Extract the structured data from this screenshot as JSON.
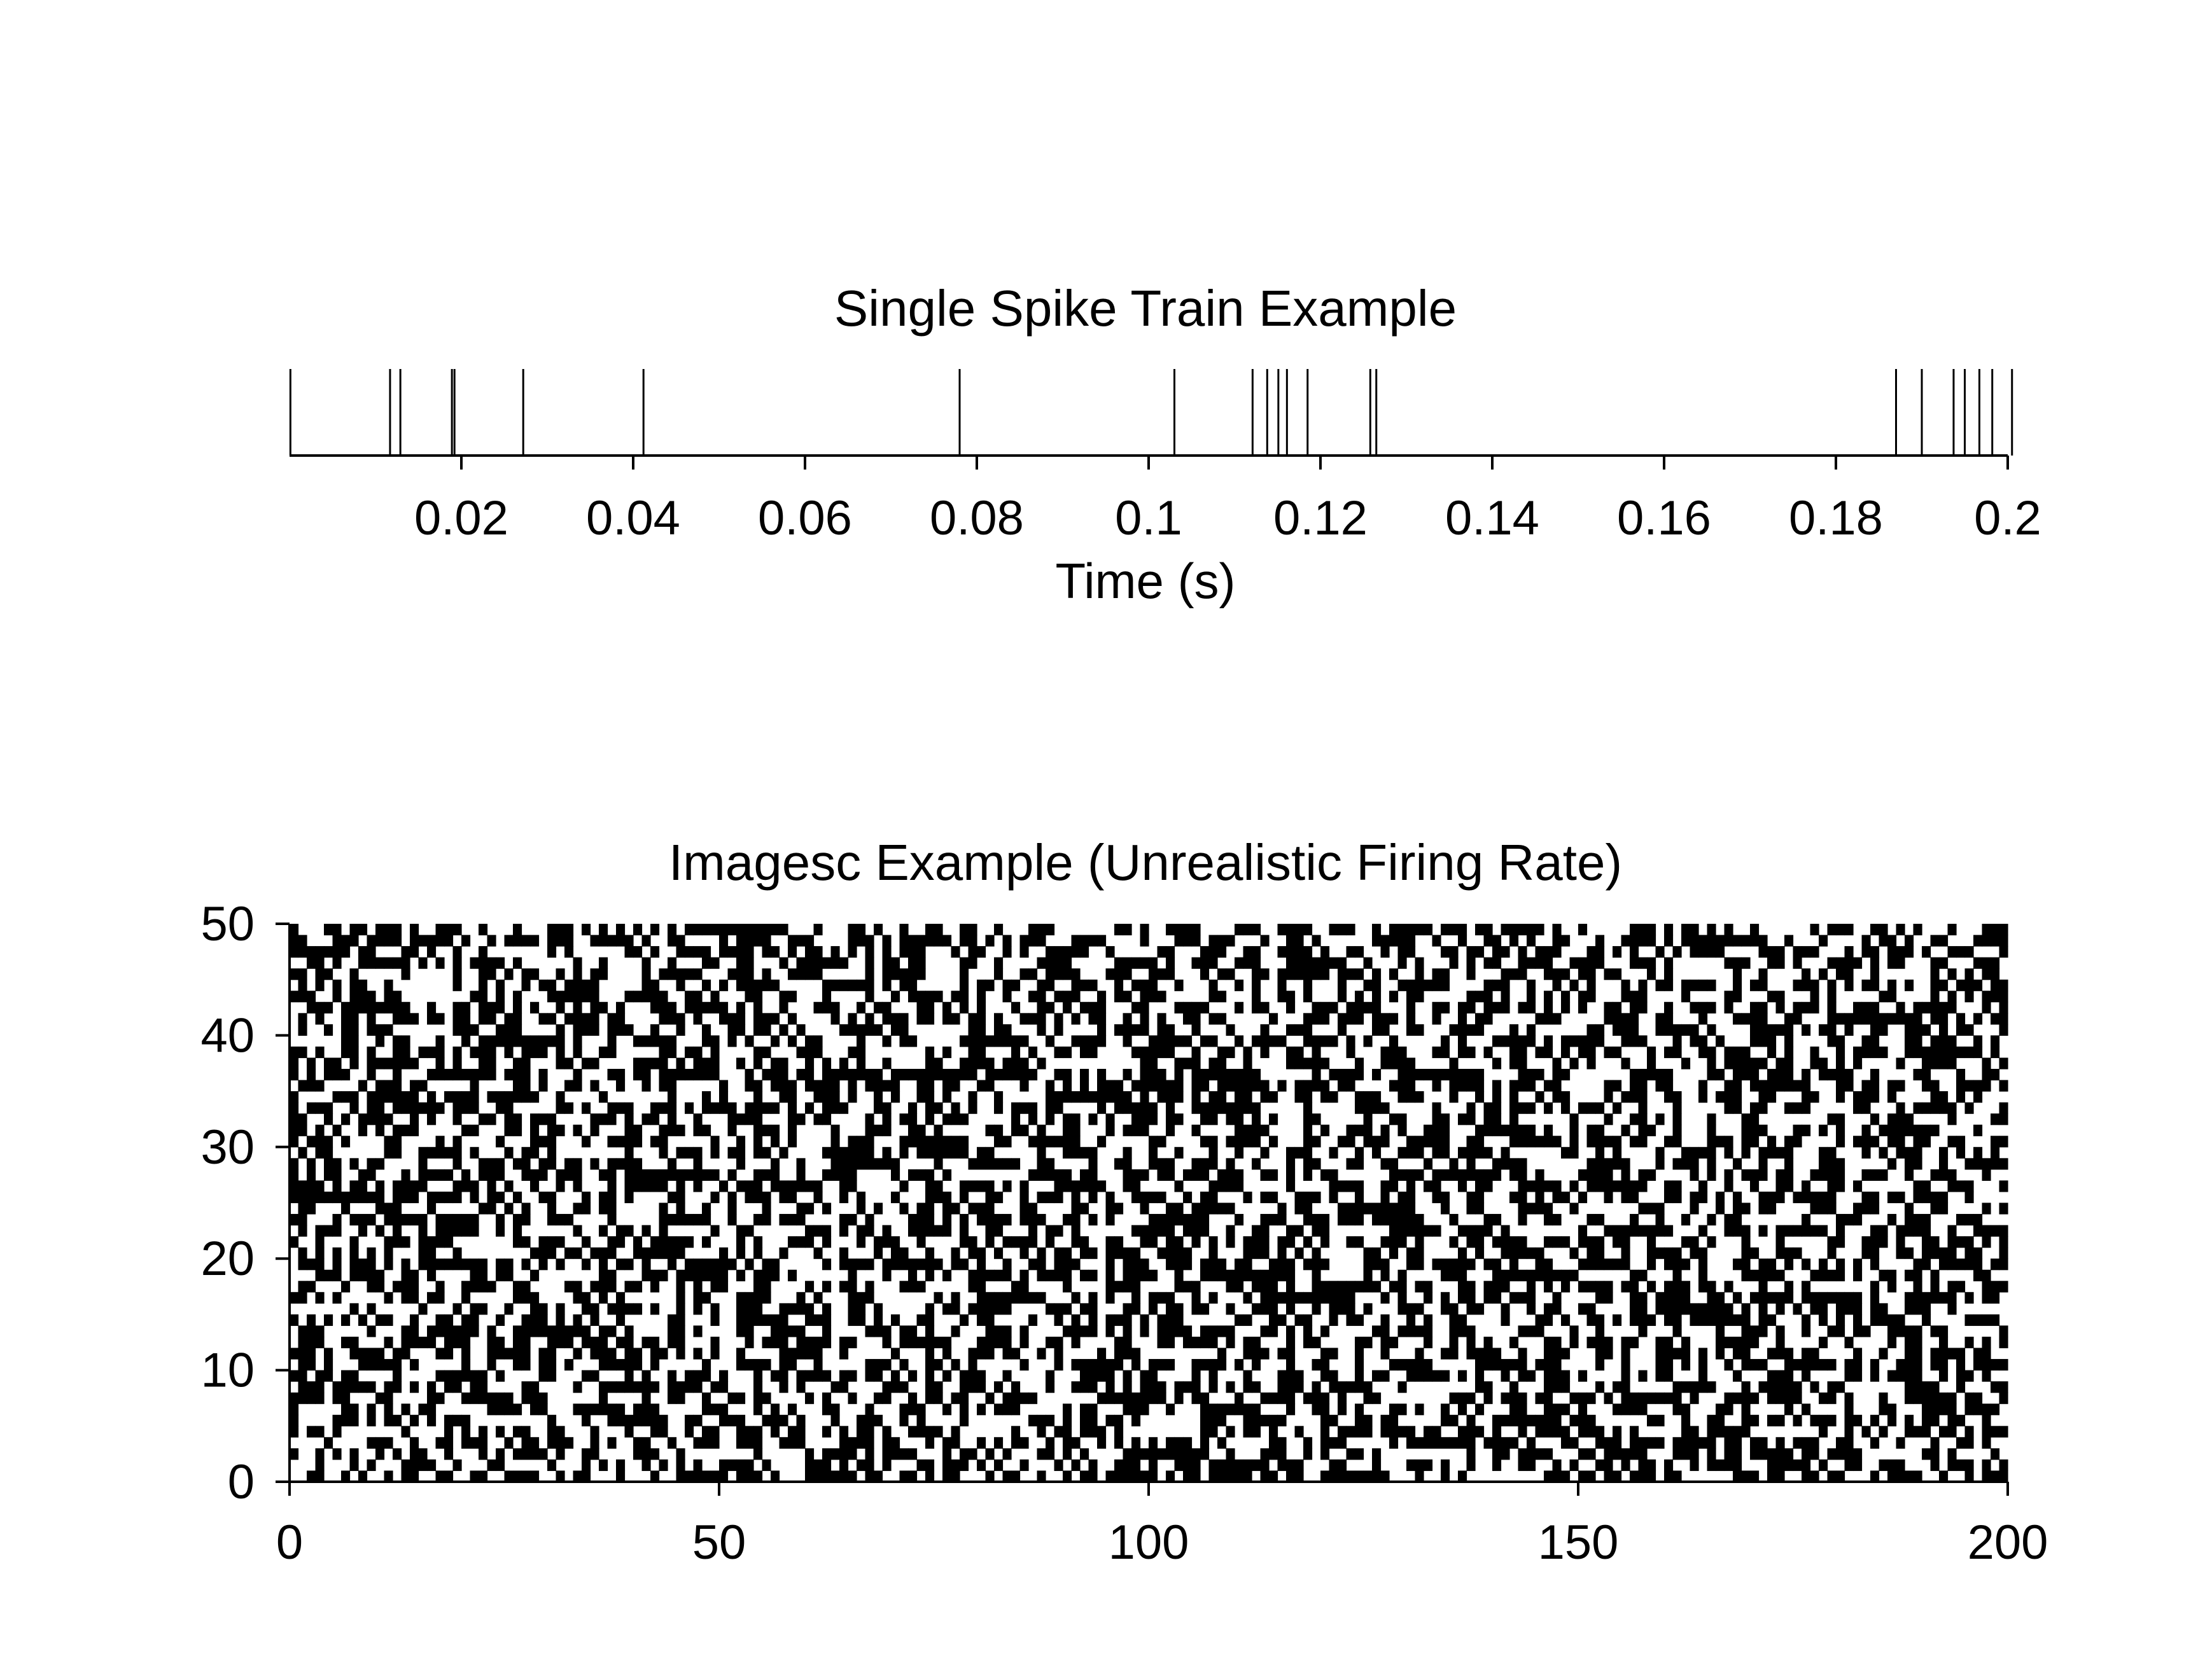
{
  "chart_data": [
    {
      "type": "raster",
      "title": "Single Spike Train Example",
      "xlabel": "Time (s)",
      "ylabel": "",
      "xlim": [
        0,
        0.2
      ],
      "xticks": [
        "0.02",
        "0.04",
        "0.06",
        "0.08",
        "0.1",
        "0.12",
        "0.14",
        "0.16",
        "0.18",
        "0.2"
      ],
      "yticks": [],
      "spike_times": [
        0.0001,
        0.0117,
        0.0129,
        0.0189,
        0.0192,
        0.0272,
        0.0412,
        0.078,
        0.103,
        0.1121,
        0.1138,
        0.1151,
        0.1161,
        0.1185,
        0.1258,
        0.1265,
        0.187,
        0.19,
        0.1937,
        0.195,
        0.1967,
        0.1982,
        0.2005
      ],
      "grid": false,
      "color": "#000000"
    },
    {
      "type": "heatmap",
      "title": "Imagesc Example (Unrealistic Firing Rate)",
      "xlabel": "",
      "ylabel": "",
      "xlim": [
        0,
        200
      ],
      "ylim": [
        0,
        50
      ],
      "xticks": [
        "0",
        "50",
        "100",
        "150",
        "200"
      ],
      "yticks": [
        "0",
        "10",
        "20",
        "30",
        "40",
        "50"
      ],
      "columns": 200,
      "rows": 50,
      "colormap": [
        "#ffffff",
        "#000000"
      ],
      "fill_fraction": 0.5,
      "grid": false
    }
  ]
}
